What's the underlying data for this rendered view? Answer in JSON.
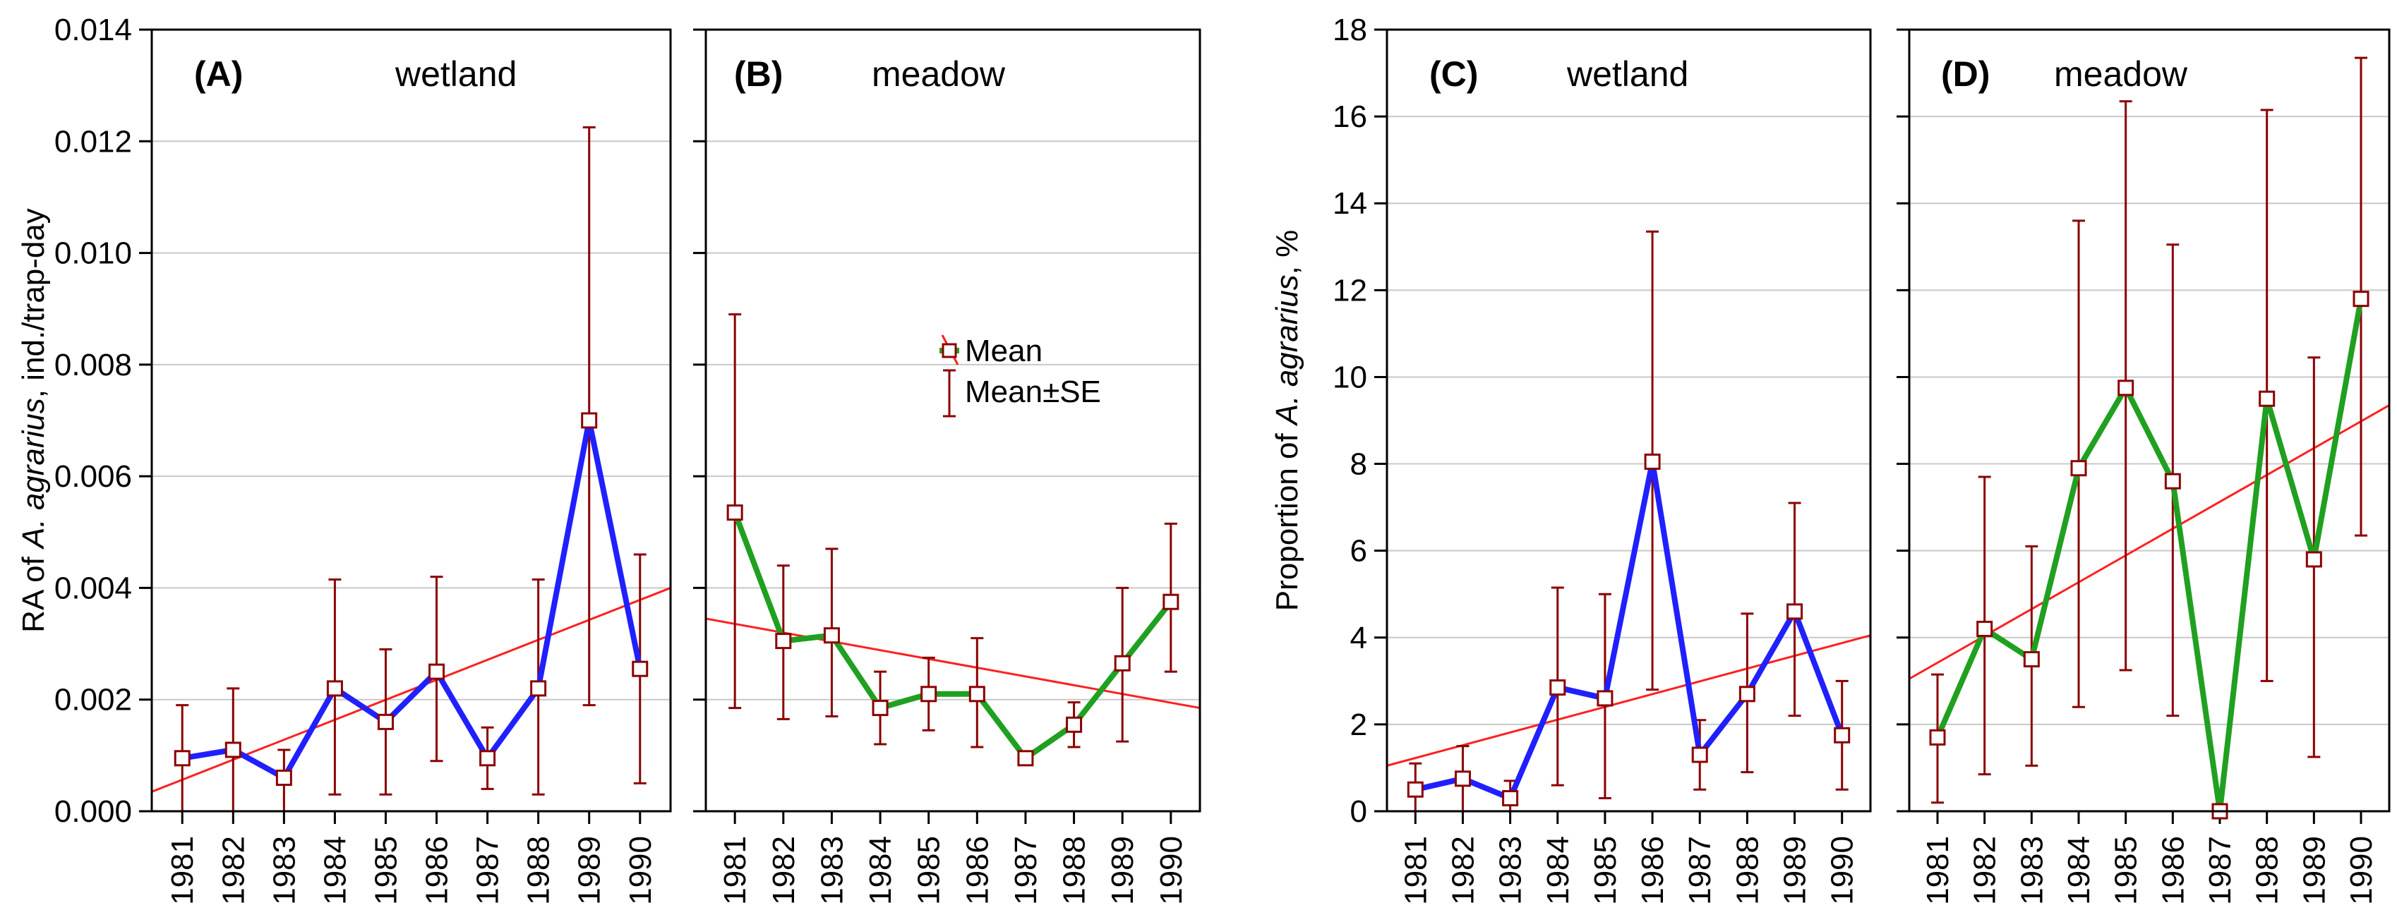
{
  "chart_data": [
    {
      "panel": "A",
      "label": "(A)",
      "title": "wetland",
      "type": "line",
      "x": [
        "1981",
        "1982",
        "1983",
        "1984",
        "1985",
        "1986",
        "1987",
        "1988",
        "1989",
        "1990"
      ],
      "series": [
        {
          "name": "Mean",
          "color": "#2020ff",
          "values": [
            0.00095,
            0.0011,
            0.0006,
            0.0022,
            0.0016,
            0.0025,
            0.00095,
            0.0022,
            0.007,
            0.00255
          ],
          "se_low": [
            0.0,
            0.0,
            0.0,
            0.0003,
            0.0003,
            0.0009,
            0.0004,
            0.0003,
            0.0019,
            0.0005
          ],
          "se_high": [
            0.0019,
            0.0022,
            0.0011,
            0.00415,
            0.0029,
            0.0042,
            0.0015,
            0.00415,
            0.01225,
            0.0046
          ]
        }
      ],
      "trend": [
        0.00035,
        0.004
      ],
      "ylim": [
        0,
        0.014
      ],
      "yticks": [
        "0.000",
        "0.002",
        "0.004",
        "0.006",
        "0.008",
        "0.010",
        "0.012",
        "0.014"
      ],
      "ytick_values": [
        0,
        0.002,
        0.004,
        0.006,
        0.008,
        0.01,
        0.012,
        0.014
      ],
      "ylabel_prefix": "RA of ",
      "ylabel_italic": "A. agrarius",
      "ylabel_suffix": ", ind./trap-day"
    },
    {
      "panel": "B",
      "label": "(B)",
      "title": "meadow",
      "type": "line",
      "x": [
        "1981",
        "1982",
        "1983",
        "1984",
        "1985",
        "1986",
        "1987",
        "1988",
        "1989",
        "1990"
      ],
      "series": [
        {
          "name": "Mean",
          "color": "#20a020",
          "values": [
            0.00535,
            0.00305,
            0.00315,
            0.00185,
            0.0021,
            0.0021,
            0.00095,
            0.00155,
            0.00265,
            0.00375
          ],
          "se_low": [
            0.00185,
            0.00165,
            0.0017,
            0.0012,
            0.00145,
            0.00115,
            0.00095,
            0.00115,
            0.00125,
            0.0025
          ],
          "se_high": [
            0.0089,
            0.0044,
            0.0047,
            0.0025,
            0.00275,
            0.0031,
            0.00095,
            0.00195,
            0.004,
            0.00515
          ]
        }
      ],
      "trend": [
        0.00345,
        0.00185
      ],
      "ylim": [
        0,
        0.014
      ],
      "ytick_values": [
        0,
        0.002,
        0.004,
        0.006,
        0.008,
        0.01,
        0.012,
        0.014
      ],
      "legend": {
        "mean_label": "Mean",
        "se_label": "Mean±SE",
        "placement": "middle-right"
      }
    },
    {
      "panel": "C",
      "label": "(C)",
      "title": "wetland",
      "type": "line",
      "x": [
        "1981",
        "1982",
        "1983",
        "1984",
        "1985",
        "1986",
        "1987",
        "1988",
        "1989",
        "1990"
      ],
      "series": [
        {
          "name": "Mean",
          "color": "#2020ff",
          "values": [
            0.5,
            0.75,
            0.3,
            2.85,
            2.6,
            8.05,
            1.3,
            2.7,
            4.6,
            1.75
          ],
          "se_low": [
            0.0,
            0.0,
            0.0,
            0.6,
            0.3,
            2.8,
            0.5,
            0.9,
            2.2,
            0.5
          ],
          "se_high": [
            1.1,
            1.5,
            0.7,
            5.15,
            5.0,
            13.35,
            2.1,
            4.55,
            7.1,
            3.0
          ]
        }
      ],
      "trend": [
        1.05,
        4.05
      ],
      "ylim": [
        0,
        18
      ],
      "yticks": [
        "0",
        "2",
        "4",
        "6",
        "8",
        "10",
        "12",
        "14",
        "16",
        "18"
      ],
      "ytick_values": [
        0,
        2,
        4,
        6,
        8,
        10,
        12,
        14,
        16,
        18
      ],
      "ylabel_prefix": "Proportion of ",
      "ylabel_italic": "A. agrarius",
      "ylabel_suffix": ", %"
    },
    {
      "panel": "D",
      "label": "(D)",
      "title": "meadow",
      "type": "line",
      "x": [
        "1981",
        "1982",
        "1983",
        "1984",
        "1985",
        "1986",
        "1987",
        "1988",
        "1989",
        "1990"
      ],
      "series": [
        {
          "name": "Mean",
          "color": "#20a020",
          "values": [
            1.7,
            4.2,
            3.5,
            7.9,
            9.75,
            7.6,
            0.0,
            9.5,
            5.8,
            11.8
          ],
          "se_low": [
            0.2,
            0.85,
            1.05,
            2.4,
            3.25,
            2.2,
            0.0,
            3.0,
            1.25,
            6.35
          ],
          "se_high": [
            3.15,
            7.7,
            6.1,
            13.6,
            16.35,
            13.05,
            0.0,
            16.15,
            10.45,
            17.35
          ]
        }
      ],
      "trend": [
        3.05,
        9.35
      ],
      "ylim": [
        0,
        18
      ],
      "ytick_values": [
        0,
        2,
        4,
        6,
        8,
        10,
        12,
        14,
        16,
        18
      ]
    }
  ],
  "colors": {
    "errorbar": "#8b0000",
    "trend": "#ff2020",
    "marker": "#8b0000",
    "grid": "#c8c8c8"
  }
}
